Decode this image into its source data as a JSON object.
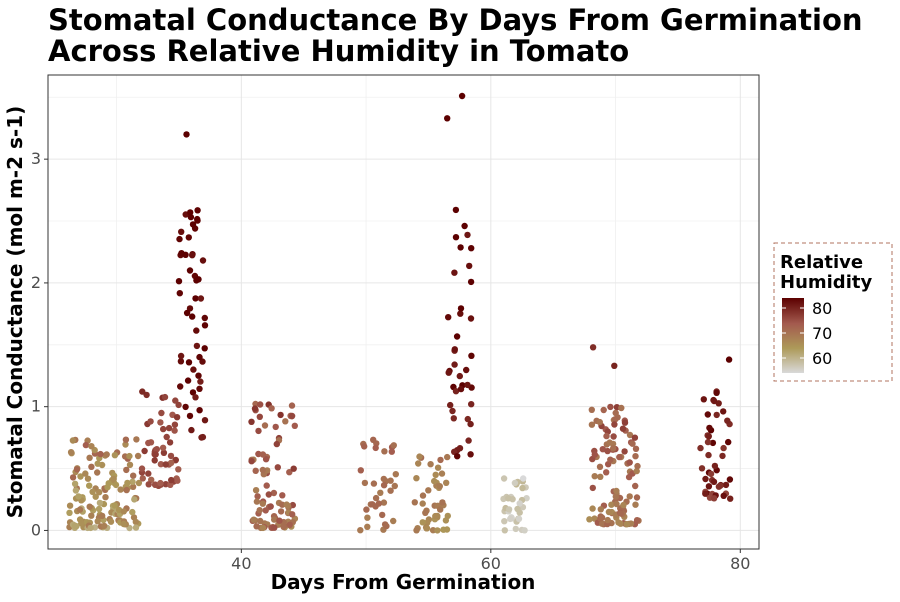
{
  "chart_data": {
    "type": "scatter",
    "title_line1": "Stomatal Conductance By Days From Germination",
    "title_line2": "Across Relative Humidity in Tomato",
    "xlabel": "Days From Germination",
    "ylabel": "Stomatal Conductance (mol m-2 s-1)",
    "xlim": [
      24.5,
      81.5
    ],
    "ylim": [
      -0.15,
      3.68
    ],
    "x_ticks": [
      40,
      60,
      80
    ],
    "y_ticks": [
      0,
      1,
      2,
      3
    ],
    "x_tick_labels": [
      "40",
      "60",
      "80"
    ],
    "y_tick_labels": [
      "0",
      "1",
      "2",
      "3"
    ],
    "grid": true,
    "legend": {
      "title_line1": "Relative",
      "title_line2": "Humidity",
      "placement": "right",
      "range": [
        54,
        84
      ],
      "labels": [
        "80",
        "70",
        "60"
      ],
      "label_values": [
        80,
        70,
        60
      ],
      "colors": [
        "#d9d9d9",
        "#ad9a59",
        "#a35a4e",
        "#5c0000"
      ]
    },
    "clusters": [
      {
        "x": 29,
        "xspread": 2.8,
        "ymin": 0.02,
        "ymax": 0.75,
        "hmin": 60,
        "hmax": 74,
        "n": 140
      },
      {
        "x": 33.5,
        "xspread": 1.6,
        "ymin": 0.35,
        "ymax": 1.15,
        "hmin": 72,
        "hmax": 80,
        "n": 55
      },
      {
        "x": 36,
        "xspread": 1.1,
        "ymin": 0.75,
        "ymax": 2.6,
        "hmin": 80,
        "hmax": 86,
        "n": 50
      },
      {
        "x": 42.5,
        "xspread": 1.8,
        "ymin": 0.02,
        "ymax": 1.05,
        "hmin": 66,
        "hmax": 80,
        "n": 90
      },
      {
        "x": 51,
        "xspread": 1.5,
        "ymin": 0.0,
        "ymax": 0.78,
        "hmin": 68,
        "hmax": 74,
        "n": 35
      },
      {
        "x": 55.3,
        "xspread": 1.4,
        "ymin": 0.0,
        "ymax": 0.6,
        "hmin": 64,
        "hmax": 72,
        "n": 45
      },
      {
        "x": 57.5,
        "xspread": 1.0,
        "ymin": 0.6,
        "ymax": 2.5,
        "hmin": 79,
        "hmax": 86,
        "n": 38
      },
      {
        "x": 62,
        "xspread": 1.0,
        "ymin": 0.0,
        "ymax": 0.42,
        "hmin": 54,
        "hmax": 60,
        "n": 32
      },
      {
        "x": 70,
        "xspread": 2.0,
        "ymin": 0.05,
        "ymax": 1.0,
        "hmin": 66,
        "hmax": 78,
        "n": 110
      },
      {
        "x": 78,
        "xspread": 1.2,
        "ymin": 0.25,
        "ymax": 1.14,
        "hmin": 76,
        "hmax": 86,
        "n": 45
      }
    ],
    "highlight_points": [
      {
        "x": 35.6,
        "y": 3.2,
        "h": 86
      },
      {
        "x": 35.9,
        "y": 2.57,
        "h": 85
      },
      {
        "x": 35.2,
        "y": 2.24,
        "h": 84
      },
      {
        "x": 36.4,
        "y": 2.02,
        "h": 84
      },
      {
        "x": 56.5,
        "y": 3.33,
        "h": 86
      },
      {
        "x": 57.7,
        "y": 3.51,
        "h": 86
      },
      {
        "x": 57.2,
        "y": 2.59,
        "h": 85
      },
      {
        "x": 57.9,
        "y": 2.46,
        "h": 85
      },
      {
        "x": 68.2,
        "y": 1.48,
        "h": 79
      },
      {
        "x": 69.9,
        "y": 1.33,
        "h": 80
      },
      {
        "x": 79.1,
        "y": 1.38,
        "h": 86
      },
      {
        "x": 77.9,
        "y": 0.26,
        "h": 77
      },
      {
        "x": 67.9,
        "y": 0.09,
        "h": 66
      },
      {
        "x": 61.4,
        "y": 0.26,
        "h": 58
      },
      {
        "x": 62.6,
        "y": 0.42,
        "h": 54
      }
    ]
  }
}
